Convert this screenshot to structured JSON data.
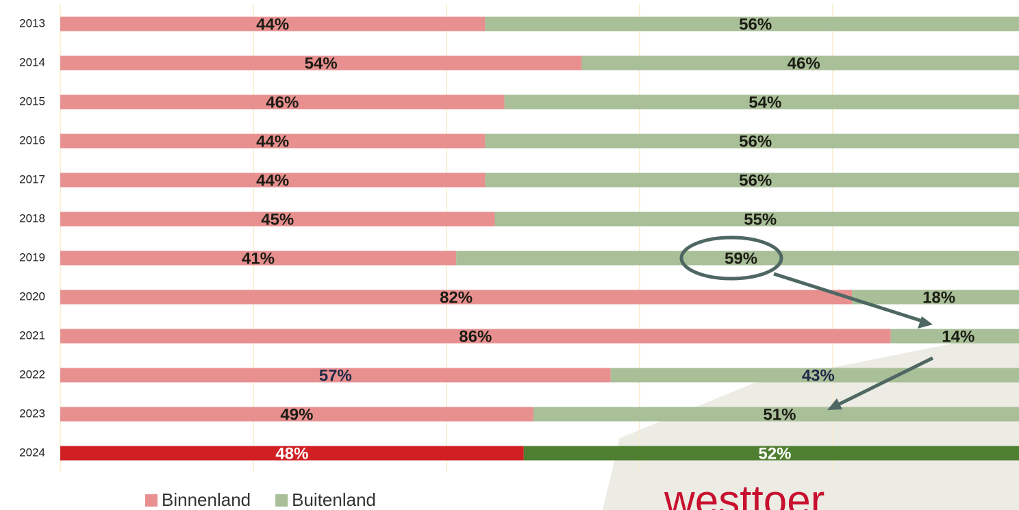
{
  "chart_data": {
    "type": "stacked_barh",
    "categories": [
      "2013",
      "2014",
      "2015",
      "2016",
      "2017",
      "2018",
      "2019",
      "2020",
      "2021",
      "2022",
      "2023",
      "2024"
    ],
    "series": [
      {
        "name": "Binnenland",
        "color": "#e89090",
        "colors": [
          "#e89090",
          "#e89090",
          "#e89090",
          "#e89090",
          "#e89090",
          "#e89090",
          "#e89090",
          "#e89090",
          "#e89090",
          "#e89090",
          "#e89090",
          "#d02024"
        ],
        "values": [
          44,
          54,
          46,
          44,
          44,
          45,
          41,
          82,
          86,
          57,
          49,
          48
        ],
        "value_labels": [
          "44%",
          "54%",
          "46%",
          "44%",
          "44%",
          "45%",
          "41%",
          "82%",
          "86%",
          "57%",
          "49%",
          "48%"
        ]
      },
      {
        "name": "Buitenland",
        "color": "#a8bf98",
        "colors": [
          "#a8bf98",
          "#a8bf98",
          "#a8bf98",
          "#a8bf98",
          "#a8bf98",
          "#a8bf98",
          "#a8bf98",
          "#a8bf98",
          "#a8bf98",
          "#a8bf98",
          "#a8bf98",
          "#4f7f30"
        ],
        "values": [
          56,
          46,
          54,
          56,
          56,
          55,
          59,
          18,
          14,
          43,
          51,
          52
        ],
        "value_labels": [
          "56%",
          "46%",
          "54%",
          "56%",
          "56%",
          "55%",
          "59%",
          "18%",
          "14%",
          "43%",
          "51%",
          "52%"
        ]
      }
    ],
    "label_colors": [
      "#1c1c14",
      "#1c1c14",
      "#1c1c14",
      "#1c1c14",
      "#1c1c14",
      "#1c1c14",
      "#1c1c14",
      "#1c1c14",
      "#1c1c14",
      "#1f2a48",
      "#1c1c14",
      "#ffffff"
    ],
    "xlim": [
      0,
      100
    ],
    "xticks": [
      0,
      20,
      40,
      60,
      80
    ],
    "grid": true,
    "legend": "bottom",
    "logo": "westtoer"
  }
}
